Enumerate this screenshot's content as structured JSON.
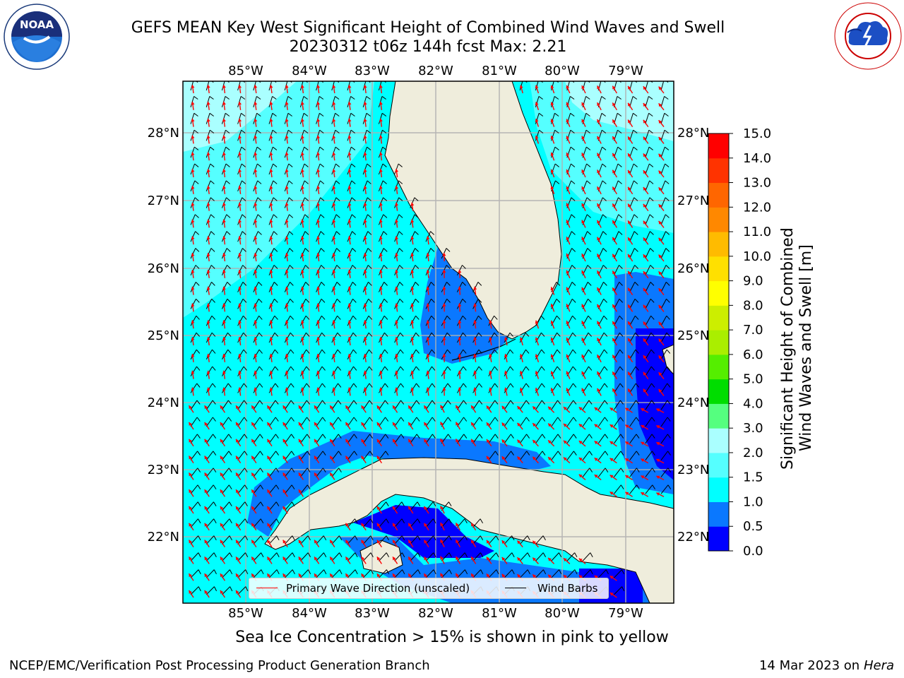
{
  "header": {
    "title_line1": "GEFS MEAN Key West Significant Height of Combined Wind Waves and Swell",
    "title_line2": "20230312 t06z 144h fcst   Max: 2.21",
    "noaa_logo_text": "NOAA",
    "noaa_logo_ring_text": "NATIONAL OCEANIC AND ATMOSPHERIC ADMINISTRATION · U.S. DEPARTMENT OF COMMERCE",
    "nws_logo_ring_text": "NATIONAL WEATHER SERVICE"
  },
  "map": {
    "lon_labels": [
      "85°W",
      "84°W",
      "83°W",
      "82°W",
      "81°W",
      "80°W",
      "79°W"
    ],
    "lat_labels": [
      "28°N",
      "27°N",
      "26°N",
      "25°N",
      "24°N",
      "23°N",
      "22°N"
    ],
    "lon_range": [
      -86.0,
      -78.3
    ],
    "lat_range": [
      21.1,
      28.7
    ],
    "colors": {
      "land": "#efeddc",
      "coast": "#000000",
      "grid": "#b0b0b0",
      "wave_arrow": "#ff0000",
      "wind_barb": "#000000"
    }
  },
  "legend": {
    "wave_label": "Primary Wave Direction (unscaled)",
    "wind_label": "Wind Barbs"
  },
  "colorbar": {
    "title_line1": "Significant Height of Combined",
    "title_line2": "Wind Waves and Swell [m]",
    "ticks": [
      "0.0",
      "0.5",
      "1.0",
      "1.5",
      "2.0",
      "3.0",
      "4.0",
      "5.0",
      "6.0",
      "7.0",
      "8.0",
      "9.0",
      "10.0",
      "11.0",
      "12.0",
      "13.0",
      "14.0",
      "15.0"
    ],
    "colors": [
      "#0000ff",
      "#0a78ff",
      "#00ffff",
      "#55ffff",
      "#aaffff",
      "#55ff7f",
      "#00dd00",
      "#55ee00",
      "#aaee00",
      "#ccee00",
      "#ffff00",
      "#ffe000",
      "#ffbb00",
      "#ff8800",
      "#ff6600",
      "#ff3300",
      "#ff0000"
    ]
  },
  "caption": "Sea Ice Concentration > 15% is shown in pink to yellow",
  "footer": {
    "left": "NCEP/EMC/Verification Post Processing Product Generation Branch",
    "right_date": "14 Mar 2023 on",
    "right_host": "Hera"
  }
}
